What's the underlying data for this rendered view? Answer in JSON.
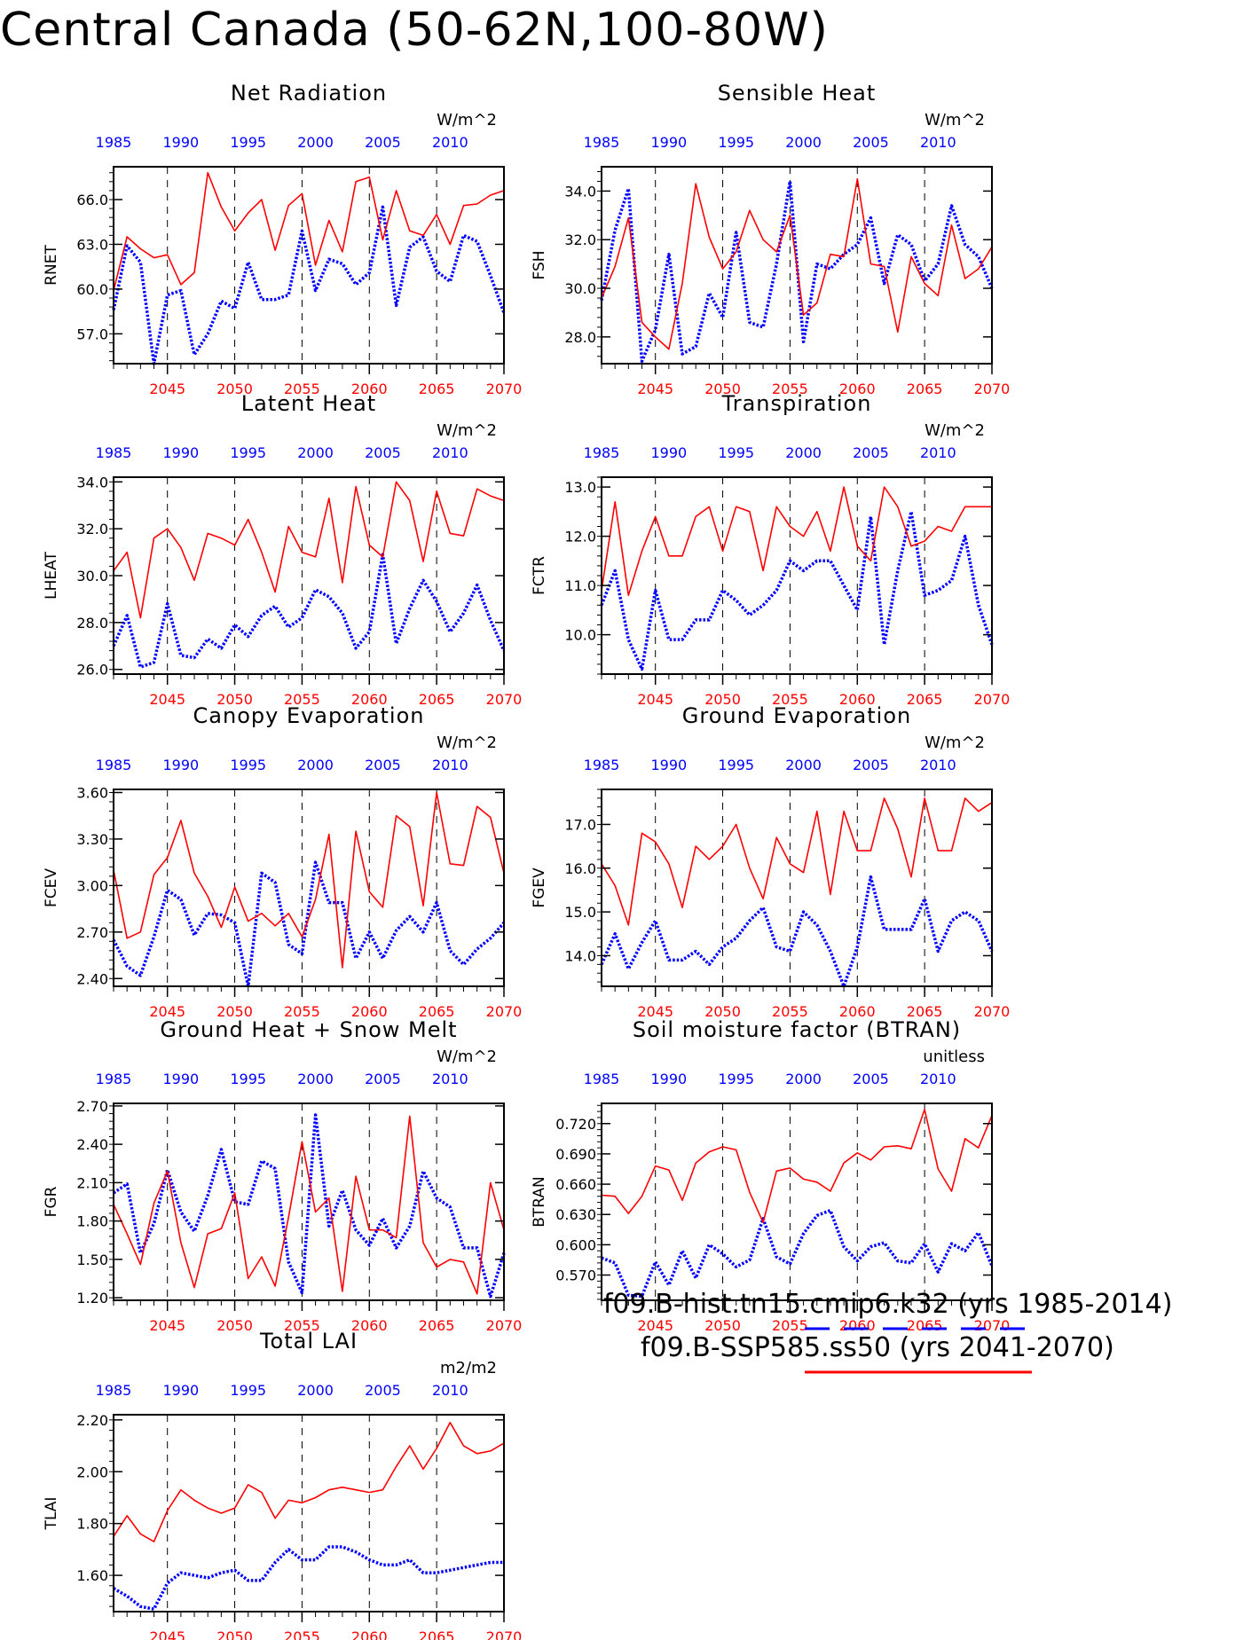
{
  "title": "Central Canada (50-62N,100-80W)",
  "colors": {
    "hist": "#0000ff",
    "future": "#ff0000",
    "axis": "#000000"
  },
  "legend": {
    "hist_label": "f09.B-hist.tn15.cmip6.k32 (yrs 1985-2014)",
    "future_label": "f09.B-SSP585.ss50 (yrs 2041-2070)"
  },
  "chart_data": [
    {
      "type": "line",
      "title": "Net Radiation",
      "ylabel": "RNET",
      "units": "W/m^2",
      "ylim": [
        55.0,
        68.2
      ],
      "yticks": [
        57.0,
        60.0,
        63.0,
        66.0
      ],
      "top_axis": {
        "ticks": [
          1985,
          1990,
          1995,
          2000,
          2005,
          2010
        ]
      },
      "bottom_axis": {
        "ticks": [
          2045,
          2050,
          2055,
          2060,
          2065,
          2070
        ]
      },
      "series": [
        {
          "name": "f09.B-hist.tn15.cmip6.k32",
          "x_start": 1985,
          "style": "dotted",
          "values": [
            58.6,
            62.9,
            61.8,
            55.0,
            59.6,
            59.9,
            55.6,
            57.0,
            59.2,
            58.7,
            61.8,
            59.3,
            59.3,
            59.6,
            63.9,
            59.9,
            62.0,
            61.7,
            60.3,
            61.1,
            65.5,
            58.9,
            62.8,
            63.5,
            61.2,
            60.5,
            63.6,
            63.2,
            60.9,
            58.4
          ]
        },
        {
          "name": "f09.B-SSP585.ss50",
          "x_start": 2041,
          "style": "solid",
          "values": [
            59.9,
            63.5,
            62.7,
            62.1,
            62.3,
            60.3,
            61.1,
            67.8,
            65.5,
            63.9,
            65.1,
            66.0,
            62.6,
            65.6,
            66.4,
            61.6,
            64.6,
            62.5,
            67.2,
            67.5,
            63.3,
            66.6,
            63.9,
            63.6,
            65.0,
            63.0,
            65.6,
            65.7,
            66.3,
            66.6
          ]
        }
      ]
    },
    {
      "type": "line",
      "title": "Sensible Heat",
      "ylabel": "FSH",
      "units": "W/m^2",
      "ylim": [
        26.9,
        35.0
      ],
      "yticks": [
        28.0,
        30.0,
        32.0,
        34.0
      ],
      "top_axis": {
        "ticks": [
          1985,
          1990,
          1995,
          2000,
          2005,
          2010
        ]
      },
      "bottom_axis": {
        "ticks": [
          2045,
          2050,
          2055,
          2060,
          2065,
          2070
        ]
      },
      "series": [
        {
          "name": "f09.B-hist.tn15.cmip6.k32",
          "x_start": 1985,
          "style": "dotted",
          "values": [
            29.5,
            32.4,
            34.1,
            27.0,
            28.3,
            31.4,
            27.3,
            27.6,
            29.8,
            28.8,
            32.3,
            28.6,
            28.4,
            31.0,
            34.4,
            27.8,
            31.0,
            30.8,
            31.4,
            31.8,
            32.9,
            30.2,
            32.2,
            31.8,
            30.3,
            31.0,
            33.4,
            31.8,
            31.3,
            30.0
          ]
        },
        {
          "name": "f09.B-SSP585.ss50",
          "x_start": 2041,
          "style": "solid",
          "values": [
            29.6,
            30.9,
            32.9,
            28.6,
            28.0,
            27.5,
            30.2,
            34.3,
            32.1,
            30.8,
            31.5,
            33.2,
            32.0,
            31.5,
            33.0,
            28.9,
            29.4,
            31.4,
            31.3,
            34.5,
            31.0,
            30.9,
            28.2,
            31.3,
            30.2,
            29.7,
            32.6,
            30.4,
            30.8,
            31.7
          ]
        }
      ]
    },
    {
      "type": "line",
      "title": "Latent Heat",
      "ylabel": "LHEAT",
      "units": "W/m^2",
      "ylim": [
        25.8,
        34.2
      ],
      "yticks": [
        26.0,
        28.0,
        30.0,
        32.0,
        34.0
      ],
      "top_axis": {
        "ticks": [
          1985,
          1990,
          1995,
          2000,
          2005,
          2010
        ]
      },
      "bottom_axis": {
        "ticks": [
          2045,
          2050,
          2055,
          2060,
          2065,
          2070
        ]
      },
      "series": [
        {
          "name": "f09.B-hist.tn15.cmip6.k32",
          "x_start": 1985,
          "style": "dotted",
          "values": [
            27.0,
            28.3,
            26.1,
            26.3,
            28.8,
            26.6,
            26.5,
            27.3,
            26.9,
            27.9,
            27.4,
            28.3,
            28.7,
            27.8,
            28.2,
            29.4,
            29.1,
            28.4,
            26.9,
            27.6,
            30.9,
            27.1,
            28.6,
            29.8,
            28.9,
            27.6,
            28.4,
            29.6,
            28.1,
            26.8
          ]
        },
        {
          "name": "f09.B-SSP585.ss50",
          "x_start": 2041,
          "style": "solid",
          "values": [
            30.2,
            31.0,
            28.2,
            31.6,
            32.0,
            31.2,
            29.8,
            31.8,
            31.6,
            31.3,
            32.4,
            31.0,
            29.3,
            32.1,
            31.0,
            30.8,
            33.3,
            29.7,
            33.8,
            31.3,
            30.8,
            34.0,
            33.2,
            30.6,
            33.6,
            31.8,
            31.7,
            33.7,
            33.4,
            33.2
          ]
        }
      ]
    },
    {
      "type": "line",
      "title": "Transpiration",
      "ylabel": "FCTR",
      "units": "W/m^2",
      "ylim": [
        9.2,
        13.2
      ],
      "yticks": [
        10.0,
        11.0,
        12.0,
        13.0
      ],
      "top_axis": {
        "ticks": [
          1985,
          1990,
          1995,
          2000,
          2005,
          2010
        ]
      },
      "bottom_axis": {
        "ticks": [
          2045,
          2050,
          2055,
          2060,
          2065,
          2070
        ]
      },
      "series": [
        {
          "name": "f09.B-hist.tn15.cmip6.k32",
          "x_start": 1985,
          "style": "dotted",
          "values": [
            10.6,
            11.3,
            9.9,
            9.3,
            10.9,
            9.9,
            9.9,
            10.3,
            10.3,
            10.9,
            10.7,
            10.4,
            10.6,
            10.9,
            11.5,
            11.3,
            11.5,
            11.5,
            11.0,
            10.5,
            12.4,
            9.8,
            11.3,
            12.5,
            10.8,
            10.9,
            11.1,
            12.0,
            10.6,
            9.8
          ]
        },
        {
          "name": "f09.B-SSP585.ss50",
          "x_start": 2041,
          "style": "solid",
          "values": [
            10.9,
            12.7,
            10.8,
            11.7,
            12.4,
            11.6,
            11.6,
            12.4,
            12.6,
            11.7,
            12.6,
            12.5,
            11.3,
            12.6,
            12.2,
            12.0,
            12.5,
            11.7,
            13.0,
            11.8,
            11.5,
            13.0,
            12.6,
            11.8,
            11.9,
            12.2,
            12.1,
            12.6,
            12.6,
            12.6
          ]
        }
      ]
    },
    {
      "type": "line",
      "title": "Canopy Evaporation",
      "ylabel": "FCEV",
      "units": "W/m^2",
      "ylim": [
        2.35,
        3.62
      ],
      "yticks": [
        2.4,
        2.7,
        3.0,
        3.3,
        3.6
      ],
      "top_axis": {
        "ticks": [
          1985,
          1990,
          1995,
          2000,
          2005,
          2010
        ]
      },
      "bottom_axis": {
        "ticks": [
          2045,
          2050,
          2055,
          2060,
          2065,
          2070
        ]
      },
      "series": [
        {
          "name": "f09.B-hist.tn15.cmip6.k32",
          "x_start": 1985,
          "style": "dotted",
          "values": [
            2.65,
            2.48,
            2.42,
            2.67,
            2.97,
            2.91,
            2.68,
            2.82,
            2.81,
            2.76,
            2.35,
            3.08,
            3.02,
            2.62,
            2.56,
            3.15,
            2.89,
            2.89,
            2.53,
            2.7,
            2.53,
            2.71,
            2.8,
            2.7,
            2.89,
            2.58,
            2.49,
            2.59,
            2.66,
            2.76
          ]
        },
        {
          "name": "f09.B-SSP585.ss50",
          "x_start": 2041,
          "style": "solid",
          "values": [
            3.1,
            2.66,
            2.7,
            3.07,
            3.18,
            3.42,
            3.08,
            2.93,
            2.73,
            2.99,
            2.77,
            2.82,
            2.74,
            2.82,
            2.67,
            2.91,
            3.33,
            2.47,
            3.35,
            2.96,
            2.86,
            3.45,
            3.38,
            2.87,
            3.6,
            3.14,
            3.13,
            3.51,
            3.44,
            3.08
          ]
        }
      ]
    },
    {
      "type": "line",
      "title": "Ground Evaporation",
      "ylabel": "FGEV",
      "units": "W/m^2",
      "ylim": [
        13.3,
        17.8
      ],
      "yticks": [
        14.0,
        15.0,
        16.0,
        17.0
      ],
      "top_axis": {
        "ticks": [
          1985,
          1990,
          1995,
          2000,
          2005,
          2010
        ]
      },
      "bottom_axis": {
        "ticks": [
          2045,
          2050,
          2055,
          2060,
          2065,
          2070
        ]
      },
      "series": [
        {
          "name": "f09.B-hist.tn15.cmip6.k32",
          "x_start": 1985,
          "style": "dotted",
          "values": [
            13.8,
            14.5,
            13.7,
            14.3,
            14.8,
            13.9,
            13.9,
            14.1,
            13.8,
            14.2,
            14.4,
            14.8,
            15.1,
            14.2,
            14.1,
            15.0,
            14.7,
            14.1,
            13.3,
            14.2,
            15.8,
            14.6,
            14.6,
            14.6,
            15.3,
            14.1,
            14.8,
            15.0,
            14.8,
            14.1
          ]
        },
        {
          "name": "f09.B-SSP585.ss50",
          "x_start": 2041,
          "style": "solid",
          "values": [
            16.1,
            15.6,
            14.7,
            16.8,
            16.6,
            16.1,
            15.1,
            16.5,
            16.2,
            16.5,
            17.0,
            16.0,
            15.3,
            16.7,
            16.1,
            15.9,
            17.3,
            15.4,
            17.3,
            16.4,
            16.4,
            17.6,
            16.9,
            15.8,
            17.6,
            16.4,
            16.4,
            17.6,
            17.3,
            17.5
          ]
        }
      ]
    },
    {
      "type": "line",
      "title": "Ground Heat + Snow Melt",
      "ylabel": "FGR",
      "units": "W/m^2",
      "ylim": [
        1.18,
        2.72
      ],
      "yticks": [
        1.2,
        1.5,
        1.8,
        2.1,
        2.4,
        2.7
      ],
      "top_axis": {
        "ticks": [
          1985,
          1990,
          1995,
          2000,
          2005,
          2010
        ]
      },
      "bottom_axis": {
        "ticks": [
          2045,
          2050,
          2055,
          2060,
          2065,
          2070
        ]
      },
      "series": [
        {
          "name": "f09.B-hist.tn15.cmip6.k32",
          "x_start": 1985,
          "style": "dotted",
          "values": [
            2.02,
            2.09,
            1.55,
            1.78,
            2.2,
            1.87,
            1.72,
            2.0,
            2.36,
            1.95,
            1.93,
            2.27,
            2.21,
            1.48,
            1.24,
            2.63,
            1.76,
            2.04,
            1.73,
            1.61,
            1.82,
            1.59,
            1.76,
            2.19,
            1.98,
            1.91,
            1.59,
            1.59,
            1.21,
            1.55
          ]
        },
        {
          "name": "f09.B-SSP585.ss50",
          "x_start": 2041,
          "style": "solid",
          "values": [
            1.93,
            1.7,
            1.46,
            1.94,
            2.19,
            1.63,
            1.28,
            1.7,
            1.74,
            2.02,
            1.35,
            1.52,
            1.29,
            1.83,
            2.42,
            1.87,
            1.98,
            1.25,
            2.15,
            1.73,
            1.73,
            1.67,
            2.62,
            1.63,
            1.44,
            1.5,
            1.48,
            1.23,
            2.1,
            1.73
          ]
        }
      ]
    },
    {
      "type": "line",
      "title": "Soil moisture factor (BTRAN)",
      "ylabel": "BTRAN",
      "units": "unitless",
      "ylim": [
        0.545,
        0.74
      ],
      "yticks": [
        0.57,
        0.6,
        0.63,
        0.66,
        0.69,
        0.72
      ],
      "top_axis": {
        "ticks": [
          1985,
          1990,
          1995,
          2000,
          2005,
          2010
        ]
      },
      "bottom_axis": {
        "ticks": [
          2045,
          2050,
          2055,
          2060,
          2065,
          2070
        ]
      },
      "series": [
        {
          "name": "f09.B-hist.tn15.cmip6.k32",
          "x_start": 1985,
          "style": "dotted",
          "values": [
            0.587,
            0.582,
            0.55,
            0.549,
            0.583,
            0.56,
            0.594,
            0.567,
            0.6,
            0.591,
            0.578,
            0.585,
            0.626,
            0.588,
            0.581,
            0.611,
            0.629,
            0.634,
            0.598,
            0.584,
            0.598,
            0.602,
            0.584,
            0.582,
            0.601,
            0.573,
            0.601,
            0.594,
            0.612,
            0.579
          ]
        },
        {
          "name": "f09.B-SSP585.ss50",
          "x_start": 2041,
          "style": "solid",
          "values": [
            0.649,
            0.648,
            0.631,
            0.648,
            0.678,
            0.674,
            0.644,
            0.681,
            0.692,
            0.697,
            0.694,
            0.652,
            0.622,
            0.673,
            0.676,
            0.665,
            0.662,
            0.653,
            0.681,
            0.691,
            0.684,
            0.697,
            0.698,
            0.695,
            0.734,
            0.675,
            0.653,
            0.705,
            0.696,
            0.728
          ]
        }
      ]
    },
    {
      "type": "line",
      "title": "Total LAI",
      "ylabel": "TLAI",
      "units": "m2/m2",
      "ylim": [
        1.46,
        2.22
      ],
      "yticks": [
        1.6,
        1.8,
        2.0,
        2.2
      ],
      "top_axis": {
        "ticks": [
          1985,
          1990,
          1995,
          2000,
          2005,
          2010
        ]
      },
      "bottom_axis": {
        "ticks": [
          2045,
          2050,
          2055,
          2060,
          2065,
          2070
        ]
      },
      "series": [
        {
          "name": "f09.B-hist.tn15.cmip6.k32",
          "x_start": 1985,
          "style": "dotted",
          "values": [
            1.55,
            1.52,
            1.48,
            1.47,
            1.57,
            1.61,
            1.6,
            1.59,
            1.61,
            1.62,
            1.58,
            1.58,
            1.65,
            1.7,
            1.66,
            1.66,
            1.71,
            1.71,
            1.69,
            1.66,
            1.64,
            1.64,
            1.66,
            1.61,
            1.61,
            1.62,
            1.63,
            1.64,
            1.65,
            1.65
          ]
        },
        {
          "name": "f09.B-SSP585.ss50",
          "x_start": 2041,
          "style": "solid",
          "values": [
            1.75,
            1.83,
            1.76,
            1.73,
            1.85,
            1.93,
            1.89,
            1.86,
            1.84,
            1.86,
            1.95,
            1.92,
            1.82,
            1.89,
            1.88,
            1.9,
            1.93,
            1.94,
            1.93,
            1.92,
            1.93,
            2.02,
            2.1,
            2.01,
            2.09,
            2.19,
            2.1,
            2.07,
            2.08,
            2.11
          ]
        }
      ]
    }
  ]
}
